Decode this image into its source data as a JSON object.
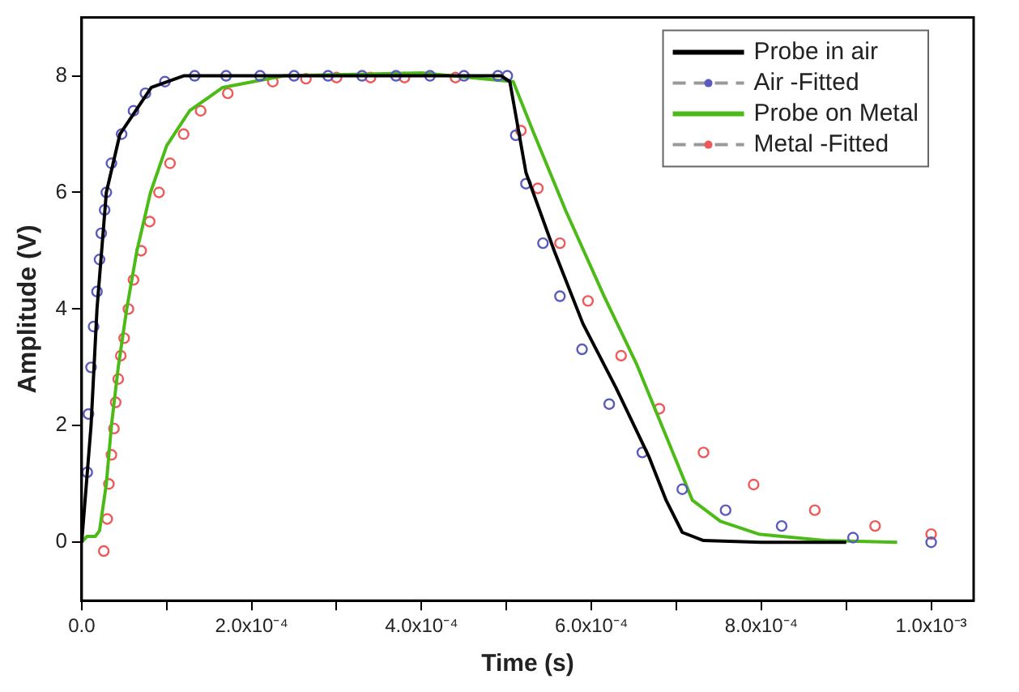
{
  "chart_data": {
    "type": "line",
    "xlabel": "Time (s)",
    "ylabel": "Amplitude (V)",
    "xlim": [
      0,
      0.00105
    ],
    "ylim": [
      -1,
      9
    ],
    "xticks": [
      {
        "value": 0,
        "label": "0.0"
      },
      {
        "value": 0.0001,
        "label": null
      },
      {
        "value": 0.0002,
        "label": "2.0x10⁻⁴"
      },
      {
        "value": 0.0003,
        "label": null
      },
      {
        "value": 0.0004,
        "label": "4.0x10⁻⁴"
      },
      {
        "value": 0.0005,
        "label": null
      },
      {
        "value": 0.0006,
        "label": "6.0x10⁻⁴"
      },
      {
        "value": 0.0007,
        "label": null
      },
      {
        "value": 0.0008,
        "label": "8.0x10⁻⁴"
      },
      {
        "value": 0.0009,
        "label": null
      },
      {
        "value": 0.001,
        "label": "1.0x10⁻³"
      }
    ],
    "yticks": [
      0,
      2,
      4,
      6,
      8
    ],
    "grid": false,
    "legend": "top right",
    "series": [
      {
        "name": "Probe in air",
        "type": "line",
        "marker": "none",
        "color": "#000000",
        "x": [
          0,
          1.1e-05,
          1.8e-05,
          2.9e-05,
          4.5e-05,
          8.2e-05,
          0.00012,
          0.0003,
          0.000494,
          0.000504,
          0.000523,
          0.000557,
          0.00059,
          0.000629,
          0.000668,
          0.000688,
          0.000707,
          0.000732,
          0.0008,
          0.0009
        ],
        "values": [
          0,
          2,
          4,
          6,
          7,
          7.8,
          8,
          8,
          8,
          7.9,
          6.34,
          4.97,
          3.75,
          2.65,
          1.46,
          0.72,
          0.17,
          0.03,
          0,
          0
        ]
      },
      {
        "name": "Air -Fitted",
        "type": "scatter",
        "marker": "circle",
        "color": "#5b5bbf",
        "x": [
          6.5e-06,
          8e-06,
          1.1e-05,
          1.4e-05,
          1.8e-05,
          2.1e-05,
          2.3e-05,
          2.7e-05,
          2.9e-05,
          3.5e-05,
          4.7e-05,
          6.1e-05,
          7.5e-05,
          9.8e-05,
          0.000133,
          0.00017,
          0.00021,
          0.00025,
          0.00029,
          0.00033,
          0.00037,
          0.00041,
          0.00045,
          0.00049,
          0.000501,
          0.000511,
          0.000523,
          0.000543,
          0.000563,
          0.000589,
          0.000621,
          0.00066,
          0.000707,
          0.000758,
          0.000824,
          0.000908,
          0.001
        ],
        "values": [
          1.2,
          2.2,
          3,
          3.7,
          4.3,
          4.85,
          5.3,
          5.7,
          6,
          6.5,
          7,
          7.4,
          7.7,
          7.9,
          8,
          8,
          8,
          8,
          8,
          8,
          8,
          8,
          8,
          8,
          8,
          6.98,
          6.15,
          5.13,
          4.22,
          3.31,
          2.37,
          1.54,
          0.91,
          0.55,
          0.28,
          0.08,
          0
        ]
      },
      {
        "name": "Probe on Metal",
        "type": "line",
        "marker": "none",
        "color": "#4cbb17",
        "x": [
          0,
          6e-06,
          1.6e-05,
          2.1e-05,
          2.9e-05,
          3.5e-05,
          4.3e-05,
          5.3e-05,
          6.5e-05,
          8.1e-05,
          0.0001,
          0.000127,
          0.000166,
          0.000238,
          0.0004,
          0.000508,
          0.000531,
          0.00057,
          0.000615,
          0.000654,
          0.000688,
          0.000719,
          0.000752,
          0.000797,
          0.000875,
          0.00096
        ],
        "values": [
          0,
          0.1,
          0.1,
          0.2,
          1,
          2,
          3,
          4,
          5,
          6,
          6.8,
          7.4,
          7.8,
          8,
          8.05,
          7.9,
          7.06,
          5.68,
          4.22,
          3.03,
          1.82,
          0.72,
          0.36,
          0.14,
          0.03,
          0
        ]
      },
      {
        "name": "Metal -Fitted",
        "type": "scatter",
        "marker": "circle",
        "color": "#ee5a5a",
        "x": [
          2.6e-05,
          3e-05,
          3.2e-05,
          3.5e-05,
          3.8e-05,
          4e-05,
          4.3e-05,
          4.6e-05,
          5e-05,
          5.5e-05,
          6.1e-05,
          7e-05,
          8e-05,
          9.1e-05,
          0.000104,
          0.00012,
          0.00014,
          0.000172,
          0.000225,
          0.000264,
          0.0003,
          0.00034,
          0.00038,
          0.00044,
          0.000517,
          0.000537,
          0.000563,
          0.000596,
          0.000635,
          0.00068,
          0.000732,
          0.000791,
          0.000863,
          0.000934,
          0.001
        ],
        "values": [
          -0.15,
          0.4,
          1,
          1.5,
          1.95,
          2.4,
          2.8,
          3.2,
          3.5,
          4,
          4.5,
          5,
          5.5,
          6,
          6.5,
          7,
          7.4,
          7.7,
          7.9,
          7.95,
          7.97,
          7.97,
          7.97,
          7.97,
          7.06,
          6.07,
          5.13,
          4.14,
          3.2,
          2.29,
          1.54,
          0.99,
          0.55,
          0.28,
          0.14
        ]
      }
    ]
  }
}
